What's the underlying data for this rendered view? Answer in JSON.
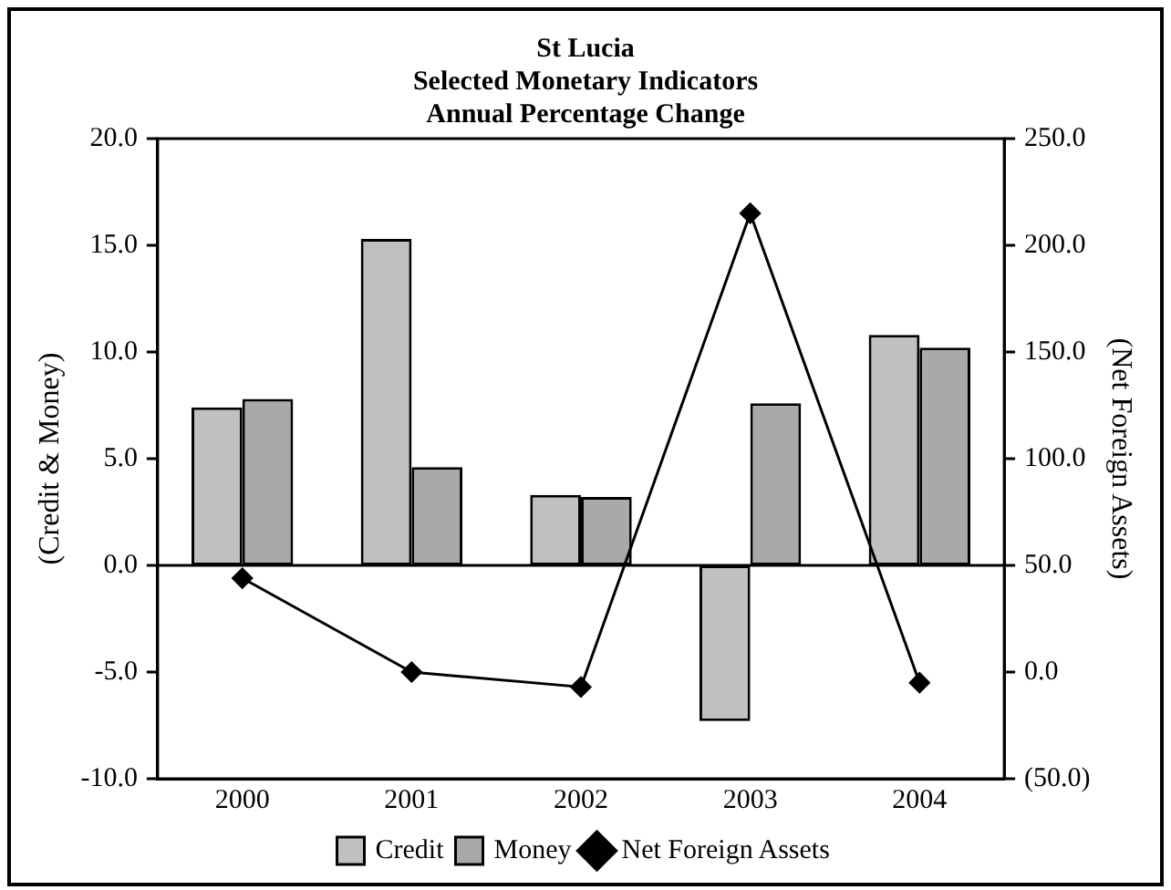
{
  "chart_data": {
    "type": "bar",
    "title": [
      "St Lucia",
      "Selected Monetary Indicators",
      "Annual Percentage Change"
    ],
    "ylabel": "(Credit & Money)",
    "y2label": "(Net Foreign Assets)",
    "categories": [
      "2000",
      "2001",
      "2002",
      "2003",
      "2004"
    ],
    "series": [
      {
        "name": "Credit",
        "color": "#c0c0c0",
        "values": [
          7.4,
          15.3,
          3.3,
          -7.3,
          10.8
        ]
      },
      {
        "name": "Money",
        "color": "#a9a9a9",
        "values": [
          7.8,
          4.6,
          3.2,
          7.6,
          10.2
        ]
      },
      {
        "name": "Net Foreign Assets",
        "type": "line",
        "axis": "y2",
        "color": "#000000",
        "marker": "diamond",
        "values": [
          44,
          0,
          -7,
          215,
          -5
        ]
      }
    ],
    "ylim": [
      -10,
      20
    ],
    "yticks": [
      {
        "value": -10,
        "label": "-10.0"
      },
      {
        "value": -5,
        "label": "-5.0"
      },
      {
        "value": 0,
        "label": "0.0"
      },
      {
        "value": 5,
        "label": "5.0"
      },
      {
        "value": 10,
        "label": "10.0"
      },
      {
        "value": 15,
        "label": "15.0"
      },
      {
        "value": 20,
        "label": "20.0"
      }
    ],
    "y2lim": [
      -50,
      250
    ],
    "y2ticks": [
      {
        "value": -50,
        "label": "(50.0)"
      },
      {
        "value": 0,
        "label": "0.0"
      },
      {
        "value": 50,
        "label": "50.0"
      },
      {
        "value": 100,
        "label": "100.0"
      },
      {
        "value": 150,
        "label": "150.0"
      },
      {
        "value": 200,
        "label": "200.0"
      },
      {
        "value": 250,
        "label": "250.0"
      }
    ],
    "ref_lines": [
      {
        "axis": "y",
        "value": 0,
        "color": "#000000",
        "line_style": "solid"
      }
    ],
    "grid": false,
    "legend": "bottom"
  }
}
